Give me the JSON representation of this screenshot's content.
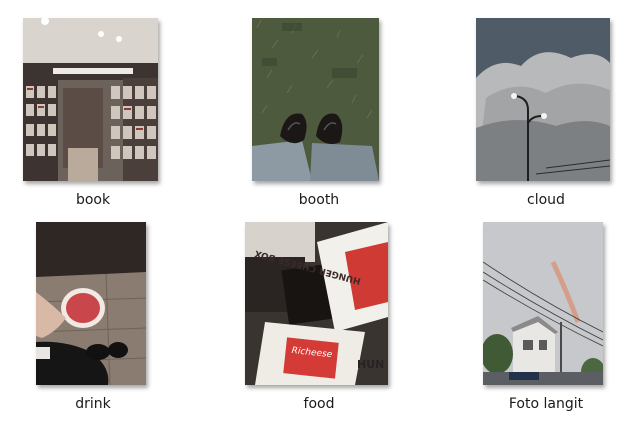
{
  "files": [
    {
      "name": "book"
    },
    {
      "name": "booth"
    },
    {
      "name": "cloud"
    },
    {
      "name": "drink"
    },
    {
      "name": "food"
    },
    {
      "name": "Foto langit"
    }
  ],
  "thumbnails": {
    "food_box_text": "HUNGER CHEESE BOX",
    "food_box_text2": "HUN CHE",
    "food_brand": "Richeese"
  }
}
